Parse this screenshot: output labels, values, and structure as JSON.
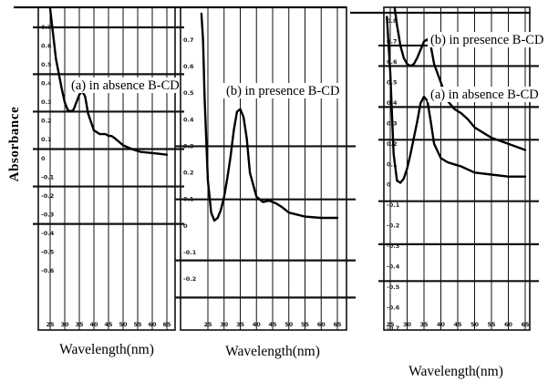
{
  "chart_data": [
    {
      "type": "line",
      "ylabel": "Absorbance",
      "xlabel": "Wavelength(nm)",
      "x_ticks": [
        "25",
        "30",
        "35",
        "40",
        "45",
        "50",
        "55",
        "60",
        "65"
      ],
      "y_ticks": [
        "0.7",
        "0.6",
        "0.5",
        "0.4",
        "0.3",
        "0.2",
        "0.1",
        "0",
        "-0.1",
        "-0.2",
        "-0.3",
        "-0.4",
        "-0.5",
        "-0.6"
      ],
      "annotations": [
        "(a) in absence B-CD"
      ],
      "series": [
        {
          "name": "(a) in absence B-CD",
          "x": [
            25,
            27,
            29,
            30,
            31,
            32,
            33,
            34,
            35,
            36,
            37,
            38,
            40,
            42,
            44,
            45,
            46,
            47,
            50,
            53,
            56,
            59,
            62,
            65
          ],
          "y": [
            0.8,
            0.53,
            0.37,
            0.3,
            0.26,
            0.25,
            0.26,
            0.3,
            0.34,
            0.36,
            0.33,
            0.24,
            0.15,
            0.13,
            0.13,
            0.12,
            0.12,
            0.11,
            0.07,
            0.05,
            0.035,
            0.03,
            0.025,
            0.02
          ]
        }
      ]
    },
    {
      "type": "line",
      "xlabel": "Wavelength(nm)",
      "x_ticks": [
        "25",
        "30",
        "35",
        "40",
        "45",
        "50",
        "55",
        "60",
        "65"
      ],
      "y_ticks": [
        "0.7",
        "0.6",
        "0.5",
        "0.4",
        "0.3",
        "0.2",
        "0.1",
        "0",
        "-0.1",
        "-0.2"
      ],
      "annotations": [
        "(b) in presence B-CD"
      ],
      "series": [
        {
          "name": "(b) in presence B-CD",
          "x": [
            23,
            23.5,
            24,
            25,
            26,
            27,
            28,
            29,
            30,
            31,
            32,
            33,
            34,
            35,
            36,
            37,
            38,
            40,
            42,
            44,
            46,
            48,
            50,
            55,
            60,
            65
          ],
          "y": [
            0.8,
            0.7,
            0.48,
            0.17,
            0.05,
            0.02,
            0.03,
            0.06,
            0.11,
            0.18,
            0.26,
            0.36,
            0.43,
            0.44,
            0.41,
            0.33,
            0.2,
            0.11,
            0.09,
            0.095,
            0.085,
            0.07,
            0.05,
            0.035,
            0.03,
            0.03
          ]
        }
      ]
    },
    {
      "type": "line",
      "xlabel": "Wavelength(nm)",
      "x_ticks": [
        "25",
        "30",
        "35",
        "40",
        "45",
        "50",
        "55",
        "60",
        "65"
      ],
      "y_ticks": [
        "0.8",
        "0.7",
        "0.6",
        "0.5",
        "0.4",
        "0.3",
        "0.2",
        "0.1",
        "0",
        "-0.1",
        "-0.2",
        "-0.3",
        "-0.4",
        "-0.5",
        "-0.6",
        "-0.7"
      ],
      "annotations": [
        "(b) in presence B-CD",
        "(a) in absence B-CD"
      ],
      "series": [
        {
          "name": "(b) in presence B-CD",
          "x": [
            24,
            25,
            26,
            27,
            28,
            29,
            30,
            31,
            32,
            33,
            34,
            35,
            36,
            37,
            38,
            40,
            42,
            44,
            46,
            48,
            50,
            55,
            60,
            65
          ],
          "y": [
            0.95,
            0.95,
            0.9,
            0.78,
            0.68,
            0.62,
            0.59,
            0.58,
            0.59,
            0.62,
            0.66,
            0.7,
            0.71,
            0.68,
            0.59,
            0.5,
            0.41,
            0.37,
            0.35,
            0.32,
            0.28,
            0.23,
            0.2,
            0.17
          ]
        },
        {
          "name": "(a) in absence B-CD",
          "x": [
            24,
            25,
            26,
            27,
            28,
            29,
            30,
            31,
            32,
            33,
            34,
            35,
            36,
            37,
            38,
            40,
            42,
            44,
            46,
            50,
            55,
            60,
            65
          ],
          "y": [
            0.82,
            0.55,
            0.15,
            0.02,
            0.01,
            0.03,
            0.08,
            0.15,
            0.23,
            0.31,
            0.4,
            0.43,
            0.41,
            0.31,
            0.2,
            0.13,
            0.11,
            0.1,
            0.09,
            0.06,
            0.05,
            0.04,
            0.04
          ]
        }
      ]
    }
  ]
}
